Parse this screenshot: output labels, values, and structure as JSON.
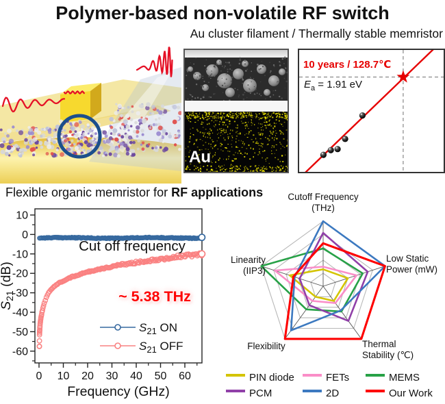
{
  "header": {
    "title": "Polymer-based non-volatile RF switch",
    "subtitle": "Au cluster filament / Thermally stable memristor"
  },
  "section_label": {
    "normal": "Flexible organic memristor for ",
    "bold": "RF applications"
  },
  "device_illustration": {
    "description": "3D render of flexible polymer memristor with Au electrodes, molecular layer and RF wave passing through",
    "colors": {
      "gold": "#f2d656",
      "pale_gold": "#f3e49a",
      "wave_red": "#e51126",
      "circle_blue": "#1c4f8c",
      "molecule_purple": "#6d4a9f",
      "molecule_red": "#e0524e",
      "molecule_white": "#ececec"
    }
  },
  "tem_panel": {
    "label": "Au",
    "map_color": "#e8e000"
  },
  "chart_data": [
    {
      "id": "arrhenius",
      "type": "scatter",
      "annotations": {
        "lifetime": "10 years / 128.7℃",
        "activation_energy": {
          "symbol": "E",
          "sub": "a",
          "rest": " = 1.91 eV"
        }
      },
      "accent_color": "#e60000",
      "fit_line_norm": {
        "x1": 0.03,
        "y1": 1.02,
        "x2": 0.95,
        "y2": -0.03
      },
      "points_norm": [
        [
          0.168,
          0.86
        ],
        [
          0.219,
          0.822
        ],
        [
          0.266,
          0.813
        ],
        [
          0.318,
          0.73
        ],
        [
          0.438,
          0.537
        ]
      ],
      "star_norm": [
        0.72,
        0.222
      ],
      "dashed_h_norm": 0.222,
      "dashed_v_norm": 0.72
    },
    {
      "id": "s21",
      "type": "scatter",
      "xlabel": "Frequency (GHz)",
      "ylabel": {
        "symbol": "S",
        "sub": "21",
        "rest": " (dB)"
      },
      "xlim": [
        0,
        67
      ],
      "xticks": [
        0,
        10,
        20,
        30,
        40,
        50,
        60
      ],
      "ylim": [
        -66,
        13
      ],
      "yticks": [
        10,
        0,
        -10,
        -20,
        -30,
        -40,
        -50,
        -60
      ],
      "annotation": {
        "line1": "Cut off frequency",
        "line2": "~ 5.38 THz",
        "line2_color": "#fe0000"
      },
      "series": [
        {
          "name": "S21 ON",
          "legend": {
            "symbol": "S",
            "sub": "21",
            "rest": " ON"
          },
          "color": "#35689f",
          "type": "flat",
          "level_db": -1.8
        },
        {
          "name": "S21 OFF",
          "legend": {
            "symbol": "S",
            "sub": "21",
            "rest": " OFF"
          },
          "color": "#f98080",
          "type": "anchors",
          "points": [
            [
              0.15,
              -57.5
            ],
            [
              0.2,
              -51.5
            ],
            [
              0.3,
              -49
            ],
            [
              0.4,
              -47
            ],
            [
              0.5,
              -45.5
            ],
            [
              0.7,
              -43.5
            ],
            [
              1,
              -41.5
            ],
            [
              1.5,
              -38.5
            ],
            [
              2,
              -36
            ],
            [
              3,
              -32.5
            ],
            [
              4,
              -30
            ],
            [
              5,
              -28.3
            ],
            [
              7,
              -26
            ],
            [
              10,
              -23.8
            ],
            [
              15,
              -21.2
            ],
            [
              20,
              -19.3
            ],
            [
              25,
              -17.8
            ],
            [
              30,
              -16.5
            ],
            [
              35,
              -15.4
            ],
            [
              40,
              -14.4
            ],
            [
              45,
              -13.4
            ],
            [
              50,
              -12.6
            ],
            [
              55,
              -11.8
            ],
            [
              60,
              -11.1
            ],
            [
              64,
              -10.5
            ],
            [
              67,
              -10
            ]
          ]
        }
      ]
    },
    {
      "id": "radar",
      "type": "radar",
      "rmax": 5,
      "rings": 5,
      "axes": [
        {
          "label_lines": "Cutoff Frequency\n(THz)"
        },
        {
          "label_lines": "Low Static\nPower (mW)"
        },
        {
          "label_lines": "Thermal\nStability (℃)"
        },
        {
          "label_lines": "Flexibility"
        },
        {
          "label_lines": "Linearity\n(IIP3)"
        }
      ],
      "series": [
        {
          "name": "PIN diode",
          "color": "#d4c400",
          "values": [
            1.3,
            2.0,
            1.4,
            1.0,
            2.7
          ]
        },
        {
          "name": "FETs",
          "color": "#fa8ec8",
          "values": [
            1.5,
            2.7,
            1.6,
            1.4,
            3.9
          ]
        },
        {
          "name": "MEMS",
          "color": "#27a147",
          "values": [
            2.9,
            3.2,
            2.4,
            2.2,
            5.0
          ]
        },
        {
          "name": "PCM",
          "color": "#9040a8",
          "values": [
            4.1,
            3.6,
            3.3,
            1.8,
            1.9
          ]
        },
        {
          "name": "2D",
          "color": "#3c79c0",
          "values": [
            5.0,
            5.0,
            2.3,
            4.2,
            2.3
          ]
        },
        {
          "name": "Our Work",
          "color": "#fe0000",
          "values": [
            3.3,
            5.0,
            5.0,
            5.0,
            2.4
          ]
        }
      ],
      "legend_order": [
        [
          "PIN diode",
          "FETs",
          "MEMS"
        ],
        [
          "PCM",
          "2D",
          "Our Work"
        ]
      ]
    }
  ]
}
